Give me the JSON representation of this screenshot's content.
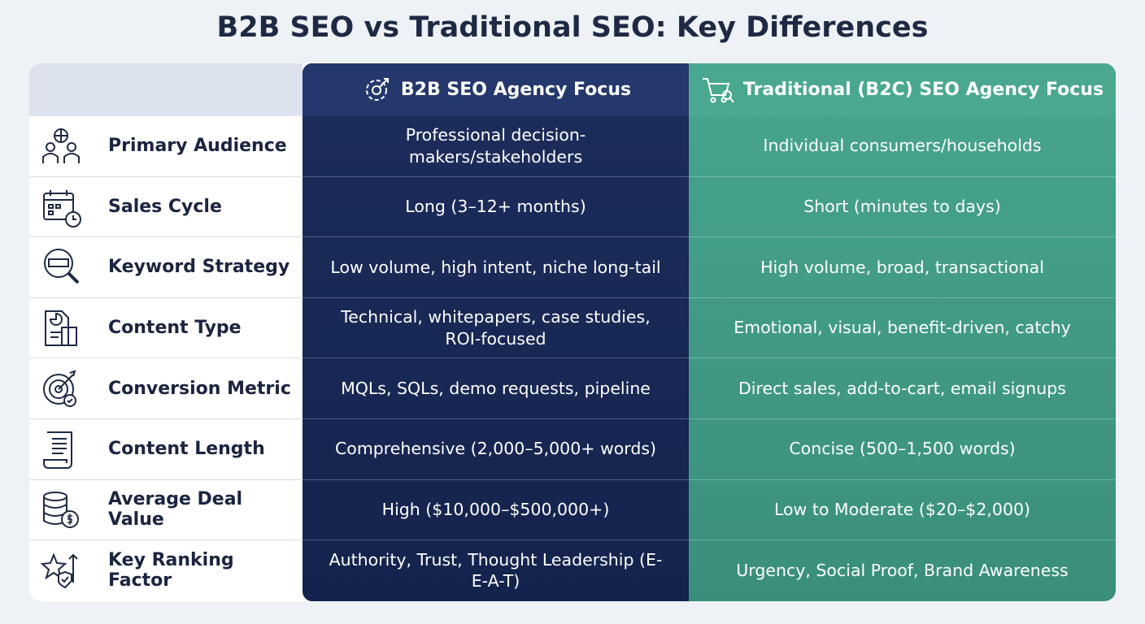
{
  "title": "B2B SEO vs Traditional SEO: Key Differences",
  "table": {
    "columns": [
      "B2B SEO Agency Focus",
      "Traditional (B2C) SEO Agency Focus"
    ],
    "rows": [
      [
        "Primary Audience",
        "Professional decision-makers/stakeholders",
        "Individual consumers/households"
      ],
      [
        "Sales Cycle",
        "Long (3–12+ months)",
        "Short (minutes to days)"
      ],
      [
        "Keyword Strategy",
        "Low volume, high intent, niche long-tail",
        "High volume, broad, transactional"
      ],
      [
        "Content Type",
        "Technical, whitepapers, case studies, ROI-focused",
        "Emotional, visual, benefit-driven, catchy"
      ],
      [
        "Conversion Metric",
        "MQLs, SQLs, demo requests, pipeline",
        "Direct sales, add-to-cart, email signups"
      ],
      [
        "Content Length",
        "Comprehensive (2,000–5,000+ words)",
        "Concise (500–1,500 words)"
      ],
      [
        "Average Deal Value",
        "High ($10,000–$500,000+)",
        "Low to Moderate ($20–$2,000)"
      ],
      [
        "Key Ranking Factor",
        "Authority, Trust, Thought Leadership (E-E-A-T)",
        "Urgency, Social Proof, Brand Awareness"
      ]
    ]
  }
}
